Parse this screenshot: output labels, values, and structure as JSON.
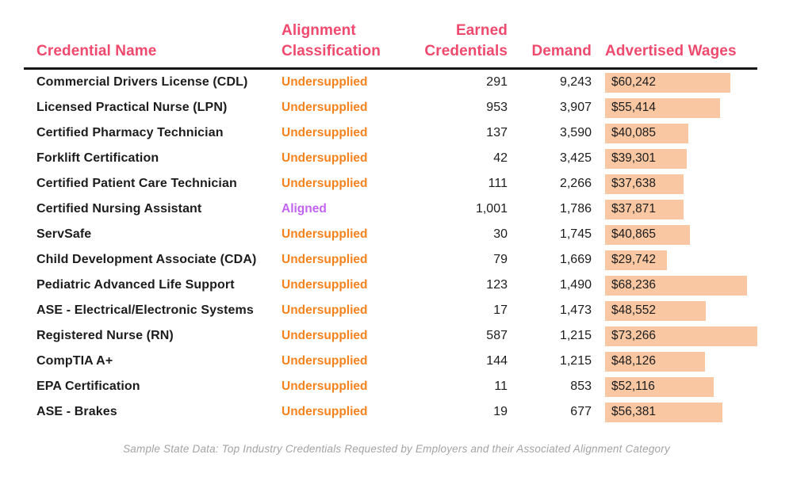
{
  "colors": {
    "header_pink": "#ef4a6e",
    "undersupplied_orange": "#f5831d",
    "aligned_purple": "#c263f2",
    "wage_bar_peach": "#f9c8a2",
    "divider_black": "#161616",
    "caption_gray": "#a3a3a3"
  },
  "table": {
    "headers": {
      "name": "Credential Name",
      "classification": "Alignment Classification",
      "earned": "Earned Credentials",
      "demand": "Demand",
      "wages": "Advertised Wages"
    },
    "max_wage_value": 73266,
    "rows": [
      {
        "name": "Commercial Drivers License (CDL)",
        "classification": "Undersupplied",
        "classification_type": "undersupplied",
        "earned": "291",
        "demand": "9,243",
        "wage": "$60,242",
        "wage_value": 60242
      },
      {
        "name": "Licensed Practical Nurse (LPN)",
        "classification": "Undersupplied",
        "classification_type": "undersupplied",
        "earned": "953",
        "demand": "3,907",
        "wage": "$55,414",
        "wage_value": 55414
      },
      {
        "name": "Certified Pharmacy Technician",
        "classification": "Undersupplied",
        "classification_type": "undersupplied",
        "earned": "137",
        "demand": "3,590",
        "wage": "$40,085",
        "wage_value": 40085
      },
      {
        "name": "Forklift Certification",
        "classification": "Undersupplied",
        "classification_type": "undersupplied",
        "earned": "42",
        "demand": "3,425",
        "wage": "$39,301",
        "wage_value": 39301
      },
      {
        "name": "Certified Patient Care Technician",
        "classification": "Undersupplied",
        "classification_type": "undersupplied",
        "earned": "111",
        "demand": "2,266",
        "wage": "$37,638",
        "wage_value": 37638
      },
      {
        "name": "Certified Nursing Assistant",
        "classification": "Aligned",
        "classification_type": "aligned",
        "earned": "1,001",
        "demand": "1,786",
        "wage": "$37,871",
        "wage_value": 37871
      },
      {
        "name": "ServSafe",
        "classification": "Undersupplied",
        "classification_type": "undersupplied",
        "earned": "30",
        "demand": "1,745",
        "wage": "$40,865",
        "wage_value": 40865
      },
      {
        "name": "Child Development Associate (CDA)",
        "classification": "Undersupplied",
        "classification_type": "undersupplied",
        "earned": "79",
        "demand": "1,669",
        "wage": "$29,742",
        "wage_value": 29742
      },
      {
        "name": "Pediatric Advanced Life Support",
        "classification": "Undersupplied",
        "classification_type": "undersupplied",
        "earned": "123",
        "demand": "1,490",
        "wage": "$68,236",
        "wage_value": 68236
      },
      {
        "name": "ASE - Electrical/Electronic Systems",
        "classification": "Undersupplied",
        "classification_type": "undersupplied",
        "earned": "17",
        "demand": "1,473",
        "wage": "$48,552",
        "wage_value": 48552
      },
      {
        "name": "Registered Nurse (RN)",
        "classification": "Undersupplied",
        "classification_type": "undersupplied",
        "earned": "587",
        "demand": "1,215",
        "wage": "$73,266",
        "wage_value": 73266
      },
      {
        "name": "CompTIA A+",
        "classification": "Undersupplied",
        "classification_type": "undersupplied",
        "earned": "144",
        "demand": "1,215",
        "wage": "$48,126",
        "wage_value": 48126
      },
      {
        "name": "EPA Certification",
        "classification": "Undersupplied",
        "classification_type": "undersupplied",
        "earned": "11",
        "demand": "853",
        "wage": "$52,116",
        "wage_value": 52116
      },
      {
        "name": "ASE - Brakes",
        "classification": "Undersupplied",
        "classification_type": "undersupplied",
        "earned": "19",
        "demand": "677",
        "wage": "$56,381",
        "wage_value": 56381
      }
    ]
  },
  "caption": "Sample State Data: Top Industry Credentials Requested by Employers and their Associated Alignment Category",
  "chart_data": {
    "type": "table",
    "title": "",
    "columns": [
      "Credential Name",
      "Alignment Classification",
      "Earned Credentials",
      "Demand",
      "Advertised Wages"
    ],
    "rows": [
      [
        "Commercial Drivers License (CDL)",
        "Undersupplied",
        291,
        9243,
        60242
      ],
      [
        "Licensed Practical Nurse (LPN)",
        "Undersupplied",
        953,
        3907,
        55414
      ],
      [
        "Certified Pharmacy Technician",
        "Undersupplied",
        137,
        3590,
        40085
      ],
      [
        "Forklift Certification",
        "Undersupplied",
        42,
        3425,
        39301
      ],
      [
        "Certified Patient Care Technician",
        "Undersupplied",
        111,
        2266,
        37638
      ],
      [
        "Certified Nursing Assistant",
        "Aligned",
        1001,
        1786,
        37871
      ],
      [
        "ServSafe",
        "Undersupplied",
        30,
        1745,
        40865
      ],
      [
        "Child Development Associate (CDA)",
        "Undersupplied",
        79,
        1669,
        29742
      ],
      [
        "Pediatric Advanced Life Support",
        "Undersupplied",
        123,
        1490,
        68236
      ],
      [
        "ASE - Electrical/Electronic Systems",
        "Undersupplied",
        17,
        1473,
        48552
      ],
      [
        "Registered Nurse (RN)",
        "Undersupplied",
        587,
        1215,
        73266
      ],
      [
        "CompTIA A+",
        "Undersupplied",
        144,
        1215,
        48126
      ],
      [
        "EPA Certification",
        "Undersupplied",
        11,
        853,
        52116
      ],
      [
        "ASE - Brakes",
        "Undersupplied",
        19,
        677,
        56381
      ]
    ],
    "wage_bars": {
      "column": "Advertised Wages",
      "scale_min": 0,
      "scale_max": 73266,
      "bar_color": "#f9c8a2",
      "note": "bar width proportional to wage value from zero"
    },
    "legend_position": "none",
    "caption": "Sample State Data: Top Industry Credentials Requested by Employers and their Associated Alignment Category"
  }
}
